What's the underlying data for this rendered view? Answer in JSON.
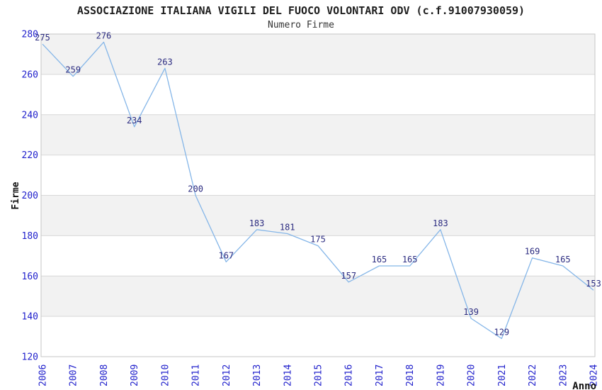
{
  "title": "ASSOCIAZIONE ITALIANA VIGILI DEL FUOCO VOLONTARI ODV (c.f.91007930059)",
  "subtitle": "Numero Firme",
  "chart_data": {
    "type": "line",
    "title": "ASSOCIAZIONE ITALIANA VIGILI DEL FUOCO VOLONTARI ODV (c.f.91007930059)",
    "subtitle": "Numero Firme",
    "xlabel": "Anno",
    "ylabel": "Firme",
    "x": [
      2006,
      2007,
      2008,
      2009,
      2010,
      2011,
      2012,
      2013,
      2014,
      2015,
      2016,
      2017,
      2018,
      2019,
      2020,
      2021,
      2022,
      2023,
      2024
    ],
    "values": [
      275,
      259,
      276,
      234,
      263,
      200,
      167,
      183,
      181,
      175,
      157,
      165,
      165,
      183,
      139,
      129,
      169,
      165,
      153
    ],
    "ylim": [
      120,
      280
    ],
    "yticks": [
      120,
      140,
      160,
      180,
      200,
      220,
      240,
      260,
      280
    ],
    "ytick_step": 20,
    "grid": "horizontal-bands-alternating",
    "legend": "none",
    "point_labels_shown": true,
    "colors": {
      "line": "#85b6e8",
      "tick_label": "#2121cc",
      "value_label": "#2b2b80",
      "band_gray": "#f2f2f2",
      "gridline": "#d8d8d8",
      "plot_border": "#c6c6c6",
      "title": "#1f1f1f",
      "subtitle": "#333333",
      "axis_label": "#111111",
      "background": "#ffffff"
    }
  }
}
